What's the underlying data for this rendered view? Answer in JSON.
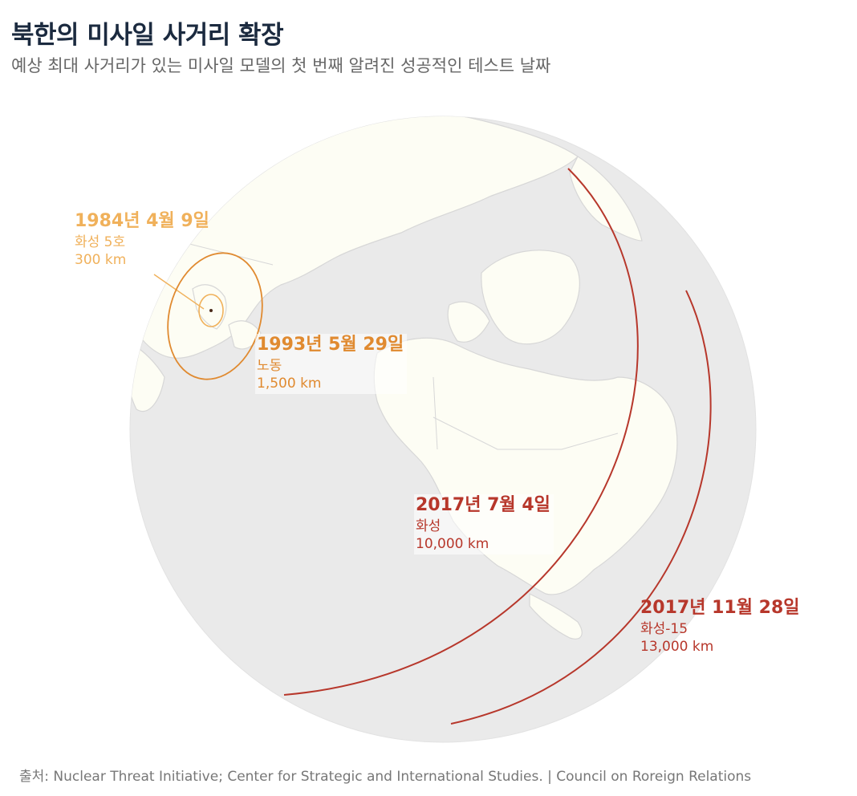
{
  "header": {
    "title": "북한의 미사일 사거리 확장",
    "subtitle": "예상 최대 사거리가 있는 미사일 모델의 첫 번째 알려진 성공적인 테스트 날짜"
  },
  "colors": {
    "range_1984": "#f0b15b",
    "range_1993": "#e08a30",
    "range_2017": "#b7372b",
    "ocean": "#eaeaea",
    "land": "#fdfdf4",
    "border": "#d7d7d7"
  },
  "ranges": [
    {
      "date": "1984년 4월 9일",
      "model": "화성 5호",
      "range": "300 km"
    },
    {
      "date": "1993년 5월 29일",
      "model": "노동",
      "range": "1,500 km"
    },
    {
      "date": "2017년 7월 4일",
      "model": "화성",
      "range": "10,000 km"
    },
    {
      "date": "2017년 11월 28일",
      "model": "화성-15",
      "range": "13,000 km"
    }
  ],
  "source": "출처: Nuclear Threat Initiative; Center for Strategic and International Studies. | Council on Roreign Relations"
}
